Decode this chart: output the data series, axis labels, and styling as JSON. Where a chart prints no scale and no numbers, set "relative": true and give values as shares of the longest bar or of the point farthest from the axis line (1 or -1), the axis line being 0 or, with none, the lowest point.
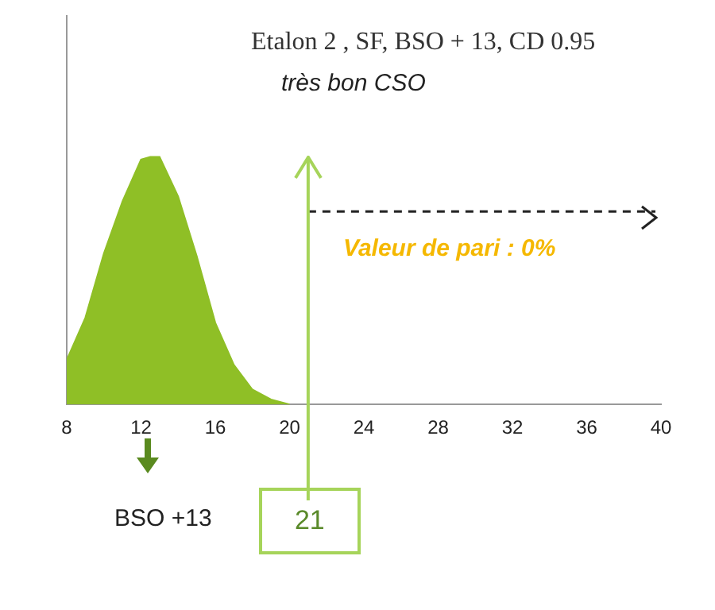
{
  "chart_data": {
    "type": "area",
    "title": "Etalon 2 , SF, BSO + 13, CD 0.95",
    "subtitle": "très bon CSO",
    "relative": true,
    "x": [
      8,
      9,
      10,
      11,
      12,
      12.5,
      13,
      14,
      15,
      16,
      17,
      18,
      19,
      20
    ],
    "series": [
      {
        "color": "#8fbf26",
        "values": [
          0.18,
          0.35,
          0.61,
          0.82,
          0.99,
          1,
          1,
          0.84,
          0.6,
          0.33,
          0.16,
          0.06,
          0.02,
          0
        ]
      },
      {
        "type": "line",
        "color": "#222222",
        "line_style": "dashed",
        "x": [
          21,
          39.7
        ],
        "values": [
          0.78,
          0.78
        ]
      }
    ],
    "xlim": [
      8,
      40
    ],
    "xticks": [
      8,
      12,
      16,
      20,
      24,
      28,
      32,
      36,
      40
    ],
    "grid": false,
    "legend": false,
    "ref_lines": [
      {
        "axis": "x",
        "value": 21,
        "label": "21",
        "color": "#a6d45a"
      }
    ],
    "annotations": [
      "Valeur de pari : 0%",
      "BSO +13"
    ]
  }
}
